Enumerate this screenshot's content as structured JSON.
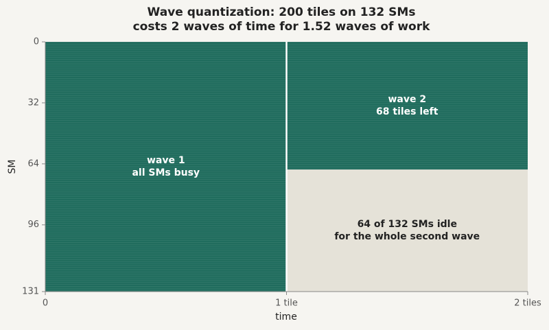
{
  "chart_data": {
    "type": "blocks",
    "title": [
      "Wave quantization: 200 tiles on 132 SMs",
      "costs 2 waves of time for 1.52 waves of work"
    ],
    "xlabel": "time",
    "ylabel": "SM",
    "xlim": [
      0,
      2
    ],
    "ylim": [
      0,
      131
    ],
    "y_inverted": true,
    "xticks": [
      0,
      {
        "value": 1,
        "label": "1 tile"
      },
      {
        "value": 2,
        "label": "2 tiles"
      }
    ],
    "yticks": [
      0,
      32,
      64,
      96,
      131
    ],
    "blocks": [
      {
        "label": [
          "wave 1",
          "all SMs busy"
        ],
        "x": [
          0,
          1
        ],
        "y": [
          0,
          131
        ],
        "color": "#1e6b5c",
        "text_color": "#ffffff",
        "striped": true
      },
      {
        "label": [
          "wave 2",
          "68 tiles left"
        ],
        "x": [
          1,
          2
        ],
        "y": [
          0,
          67
        ],
        "color": "#1e6b5c",
        "text_color": "#ffffff",
        "striped": true
      },
      {
        "label": [
          "64 of 132 SMs idle",
          "for the whole second wave"
        ],
        "x": [
          1,
          2
        ],
        "y": [
          67,
          131
        ],
        "color": "#e5e2d8",
        "text_color": "#222222",
        "striped": false
      }
    ]
  }
}
